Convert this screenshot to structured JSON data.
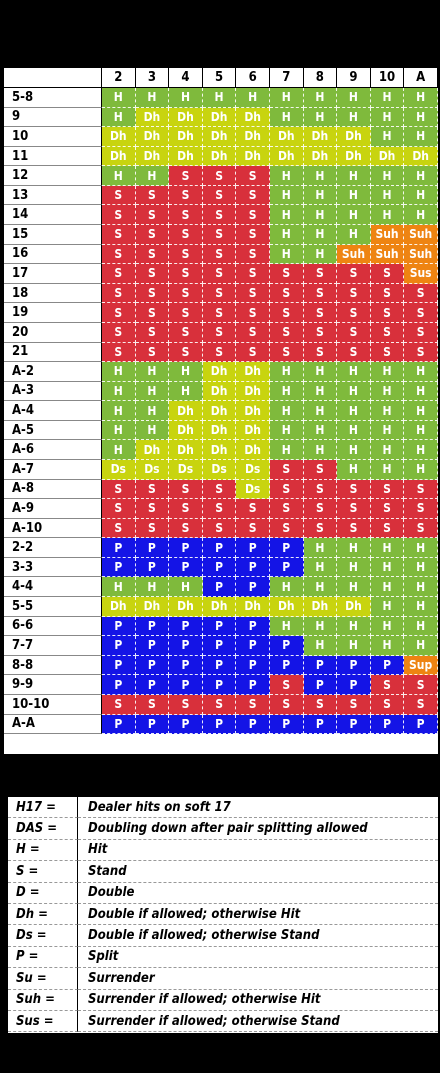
{
  "colors": {
    "H": "#7fba3c",
    "S": "#d8303b",
    "D": "#c8d40f",
    "P": "#1414e6",
    "O": "#ee8412"
  },
  "chart": {
    "dealer_cards": [
      "2",
      "3",
      "4",
      "5",
      "6",
      "7",
      "8",
      "9",
      "10",
      "A"
    ],
    "rows": [
      {
        "hand": "5-8",
        "cells": [
          "H",
          "H",
          "H",
          "H",
          "H",
          "H",
          "H",
          "H",
          "H",
          "H"
        ]
      },
      {
        "hand": "9",
        "cells": [
          "H",
          "Dh",
          "Dh",
          "Dh",
          "Dh",
          "H",
          "H",
          "H",
          "H",
          "H"
        ]
      },
      {
        "hand": "10",
        "cells": [
          "Dh",
          "Dh",
          "Dh",
          "Dh",
          "Dh",
          "Dh",
          "Dh",
          "Dh",
          "H",
          "H"
        ]
      },
      {
        "hand": "11",
        "cells": [
          "Dh",
          "Dh",
          "Dh",
          "Dh",
          "Dh",
          "Dh",
          "Dh",
          "Dh",
          "Dh",
          "Dh"
        ]
      },
      {
        "hand": "12",
        "cells": [
          "H",
          "H",
          "S",
          "S",
          "S",
          "H",
          "H",
          "H",
          "H",
          "H"
        ]
      },
      {
        "hand": "13",
        "cells": [
          "S",
          "S",
          "S",
          "S",
          "S",
          "H",
          "H",
          "H",
          "H",
          "H"
        ]
      },
      {
        "hand": "14",
        "cells": [
          "S",
          "S",
          "S",
          "S",
          "S",
          "H",
          "H",
          "H",
          "H",
          "H"
        ]
      },
      {
        "hand": "15",
        "cells": [
          "S",
          "S",
          "S",
          "S",
          "S",
          "H",
          "H",
          "H",
          "Suh",
          "Suh"
        ]
      },
      {
        "hand": "16",
        "cells": [
          "S",
          "S",
          "S",
          "S",
          "S",
          "H",
          "H",
          "Suh",
          "Suh",
          "Suh"
        ]
      },
      {
        "hand": "17",
        "cells": [
          "S",
          "S",
          "S",
          "S",
          "S",
          "S",
          "S",
          "S",
          "S",
          "Sus"
        ]
      },
      {
        "hand": "18",
        "cells": [
          "S",
          "S",
          "S",
          "S",
          "S",
          "S",
          "S",
          "S",
          "S",
          "S"
        ]
      },
      {
        "hand": "19",
        "cells": [
          "S",
          "S",
          "S",
          "S",
          "S",
          "S",
          "S",
          "S",
          "S",
          "S"
        ]
      },
      {
        "hand": "20",
        "cells": [
          "S",
          "S",
          "S",
          "S",
          "S",
          "S",
          "S",
          "S",
          "S",
          "S"
        ]
      },
      {
        "hand": "21",
        "cells": [
          "S",
          "S",
          "S",
          "S",
          "S",
          "S",
          "S",
          "S",
          "S",
          "S"
        ]
      },
      {
        "hand": "A-2",
        "cells": [
          "H",
          "H",
          "H",
          "Dh",
          "Dh",
          "H",
          "H",
          "H",
          "H",
          "H"
        ]
      },
      {
        "hand": "A-3",
        "cells": [
          "H",
          "H",
          "H",
          "Dh",
          "Dh",
          "H",
          "H",
          "H",
          "H",
          "H"
        ]
      },
      {
        "hand": "A-4",
        "cells": [
          "H",
          "H",
          "Dh",
          "Dh",
          "Dh",
          "H",
          "H",
          "H",
          "H",
          "H"
        ]
      },
      {
        "hand": "A-5",
        "cells": [
          "H",
          "H",
          "Dh",
          "Dh",
          "Dh",
          "H",
          "H",
          "H",
          "H",
          "H"
        ]
      },
      {
        "hand": "A-6",
        "cells": [
          "H",
          "Dh",
          "Dh",
          "Dh",
          "Dh",
          "H",
          "H",
          "H",
          "H",
          "H"
        ]
      },
      {
        "hand": "A-7",
        "cells": [
          "Ds",
          "Ds",
          "Ds",
          "Ds",
          "Ds",
          "S",
          "S",
          "H",
          "H",
          "H"
        ]
      },
      {
        "hand": "A-8",
        "cells": [
          "S",
          "S",
          "S",
          "S",
          "Ds",
          "S",
          "S",
          "S",
          "S",
          "S"
        ]
      },
      {
        "hand": "A-9",
        "cells": [
          "S",
          "S",
          "S",
          "S",
          "S",
          "S",
          "S",
          "S",
          "S",
          "S"
        ]
      },
      {
        "hand": "A-10",
        "cells": [
          "S",
          "S",
          "S",
          "S",
          "S",
          "S",
          "S",
          "S",
          "S",
          "S"
        ]
      },
      {
        "hand": "2-2",
        "cells": [
          "P",
          "P",
          "P",
          "P",
          "P",
          "P",
          "H",
          "H",
          "H",
          "H"
        ]
      },
      {
        "hand": "3-3",
        "cells": [
          "P",
          "P",
          "P",
          "P",
          "P",
          "P",
          "H",
          "H",
          "H",
          "H"
        ]
      },
      {
        "hand": "4-4",
        "cells": [
          "H",
          "H",
          "H",
          "P",
          "P",
          "H",
          "H",
          "H",
          "H",
          "H"
        ]
      },
      {
        "hand": "5-5",
        "cells": [
          "Dh",
          "Dh",
          "Dh",
          "Dh",
          "Dh",
          "Dh",
          "Dh",
          "Dh",
          "H",
          "H"
        ]
      },
      {
        "hand": "6-6",
        "cells": [
          "P",
          "P",
          "P",
          "P",
          "P",
          "H",
          "H",
          "H",
          "H",
          "H"
        ]
      },
      {
        "hand": "7-7",
        "cells": [
          "P",
          "P",
          "P",
          "P",
          "P",
          "P",
          "H",
          "H",
          "H",
          "H"
        ]
      },
      {
        "hand": "8-8",
        "cells": [
          "P",
          "P",
          "P",
          "P",
          "P",
          "P",
          "P",
          "P",
          "P",
          "Sup"
        ]
      },
      {
        "hand": "9-9",
        "cells": [
          "P",
          "P",
          "P",
          "P",
          "P",
          "S",
          "P",
          "P",
          "S",
          "S"
        ]
      },
      {
        "hand": "10-10",
        "cells": [
          "S",
          "S",
          "S",
          "S",
          "S",
          "S",
          "S",
          "S",
          "S",
          "S"
        ]
      },
      {
        "hand": "A-A",
        "cells": [
          "P",
          "P",
          "P",
          "P",
          "P",
          "P",
          "P",
          "P",
          "P",
          "P"
        ]
      }
    ]
  },
  "legend": [
    {
      "key": "H17 =",
      "desc": "Dealer hits on soft 17"
    },
    {
      "key": "DAS =",
      "desc": "Doubling down after pair splitting allowed"
    },
    {
      "key": "H =",
      "desc": "Hit"
    },
    {
      "key": "S =",
      "desc": "Stand"
    },
    {
      "key": "D =",
      "desc": "Double"
    },
    {
      "key": "Dh =",
      "desc": "Double if allowed; otherwise Hit"
    },
    {
      "key": "Ds =",
      "desc": "Double if allowed; otherwise Stand"
    },
    {
      "key": "P =",
      "desc": "Split"
    },
    {
      "key": "Su =",
      "desc": "Surrender"
    },
    {
      "key": "Suh =",
      "desc": "Surrender if allowed; otherwise Hit"
    },
    {
      "key": "Sus =",
      "desc": "Surrender if allowed; otherwise Stand"
    }
  ]
}
